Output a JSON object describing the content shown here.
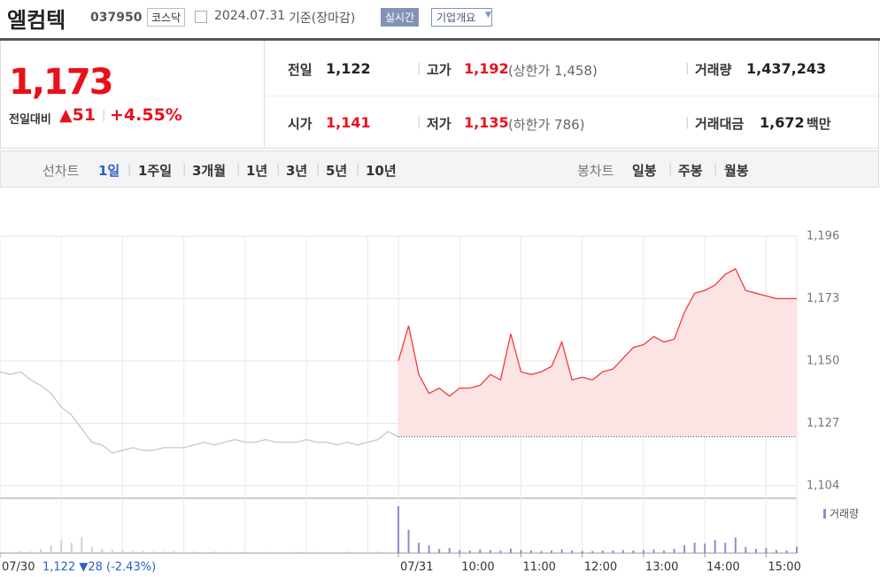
{
  "header": {
    "name": "엘컴텍",
    "code": "037950",
    "market": "코스닥",
    "date": "2024.07.31",
    "basis": "기준(장마감)",
    "buttons": [
      "실시간",
      "기업개요"
    ]
  },
  "summary": {
    "price": "1,173",
    "change_label": "전일대비",
    "change": "▲51",
    "change_rate": "+4.55%"
  },
  "stats": [
    {
      "label": "전일",
      "value": "1,122"
    },
    {
      "label": "고가",
      "value": "1,192",
      "note": "(상한가 1,458)"
    },
    {
      "label": "거래량",
      "value": "1,437,243"
    },
    {
      "label": "시가",
      "value": "1,141"
    },
    {
      "label": "저가",
      "value": "1,135",
      "note": "(하한가 786)"
    },
    {
      "label": "거래대금",
      "value": "1,672",
      "unit": "백만"
    }
  ],
  "tabs": {
    "line_label": "선차트",
    "line": [
      "1일",
      "1주일",
      "3개월",
      "1년",
      "3년",
      "5년",
      "10년"
    ],
    "candle_label": "봉차트",
    "candle": [
      "일봉",
      "주봉",
      "월봉"
    ]
  },
  "chart_data": {
    "type": "line",
    "ylim": [
      1100,
      1196
    ],
    "yticks": [
      {
        "value": 1104,
        "label": "1,104"
      },
      {
        "value": 1127,
        "label": "1,127"
      },
      {
        "value": 1150,
        "label": "1,150"
      },
      {
        "value": 1173,
        "label": "1,173"
      },
      {
        "value": 1196,
        "label": "1,196"
      }
    ],
    "xlim": [
      -390,
      390
    ],
    "xticks": [
      {
        "value": -390,
        "label": "07/30"
      },
      {
        "value": 0,
        "label": "07/31"
      },
      {
        "value": 60,
        "label": "10:00"
      },
      {
        "value": 120,
        "label": "11:00"
      },
      {
        "value": 180,
        "label": "12:00"
      },
      {
        "value": 240,
        "label": "13:00"
      },
      {
        "value": 300,
        "label": "14:00"
      },
      {
        "value": 360,
        "label": "15:00"
      }
    ],
    "baseline": 1122,
    "prev_summary": "1,122 ▼28 (-2.43%)",
    "volume_label": "거래량",
    "volume_color": "#9a86d0",
    "series": [
      {
        "color": "#c8c8c8",
        "x": [
          -390,
          -380,
          -370,
          -360,
          -350,
          -340,
          -330,
          -320,
          -310,
          -300,
          -290,
          -280,
          -270,
          -260,
          -250,
          -240,
          -230,
          -220,
          -210,
          -200,
          -190,
          -180,
          -170,
          -160,
          -150,
          -140,
          -130,
          -120,
          -110,
          -100,
          -90,
          -80,
          -70,
          -60,
          -50,
          -40,
          -30,
          -20,
          -10,
          0
        ],
        "values": [
          1146,
          1145,
          1146,
          1143,
          1141,
          1138,
          1133,
          1130,
          1125,
          1120,
          1119,
          1116,
          1117,
          1118,
          1117,
          1117,
          1118,
          1118,
          1118,
          1119,
          1120,
          1119,
          1120,
          1121,
          1120,
          1120,
          1121,
          1120,
          1120,
          1120,
          1121,
          1120,
          1120,
          1119,
          1120,
          1119,
          1120,
          1121,
          1124,
          1122
        ],
        "volume": [
          3000,
          2500,
          4000,
          3000,
          8000,
          15000,
          25000,
          20000,
          30000,
          12000,
          8000,
          6000,
          5000,
          4000,
          4000,
          3000,
          3000,
          4000,
          2500,
          3000,
          2000,
          3000,
          2500,
          2000,
          3000,
          2000,
          2500,
          2000,
          2000,
          3000,
          2000,
          2500,
          2000,
          2000,
          3000,
          2000,
          2500,
          3000,
          2500,
          4000
        ]
      },
      {
        "color": "#f03c3c",
        "fill": "#fde4e4",
        "x": [
          0,
          10,
          20,
          30,
          40,
          50,
          60,
          70,
          80,
          90,
          100,
          110,
          120,
          130,
          140,
          150,
          160,
          170,
          180,
          190,
          200,
          210,
          220,
          230,
          240,
          250,
          260,
          270,
          280,
          290,
          300,
          310,
          320,
          330,
          340,
          350,
          360,
          370,
          380,
          390
        ],
        "values": [
          1150,
          1163,
          1145,
          1138,
          1140,
          1137,
          1140,
          1140,
          1141,
          1145,
          1143,
          1160,
          1146,
          1145,
          1146,
          1148,
          1157,
          1143,
          1144,
          1143,
          1146,
          1147,
          1151,
          1155,
          1156,
          1159,
          1157,
          1158,
          1168,
          1175,
          1176,
          1178,
          1182,
          1184,
          1176,
          1175,
          1174,
          1173,
          1173,
          1173
        ],
        "volume": [
          90000,
          45000,
          20000,
          15000,
          8000,
          10000,
          6000,
          5000,
          7000,
          6000,
          5000,
          9000,
          6000,
          5000,
          4000,
          5000,
          7000,
          5000,
          4000,
          4000,
          5000,
          5000,
          6000,
          5000,
          6000,
          7000,
          5000,
          8000,
          15000,
          20000,
          18000,
          25000,
          20000,
          30000,
          12000,
          8000,
          10000,
          6000,
          5000,
          12000
        ]
      }
    ]
  }
}
